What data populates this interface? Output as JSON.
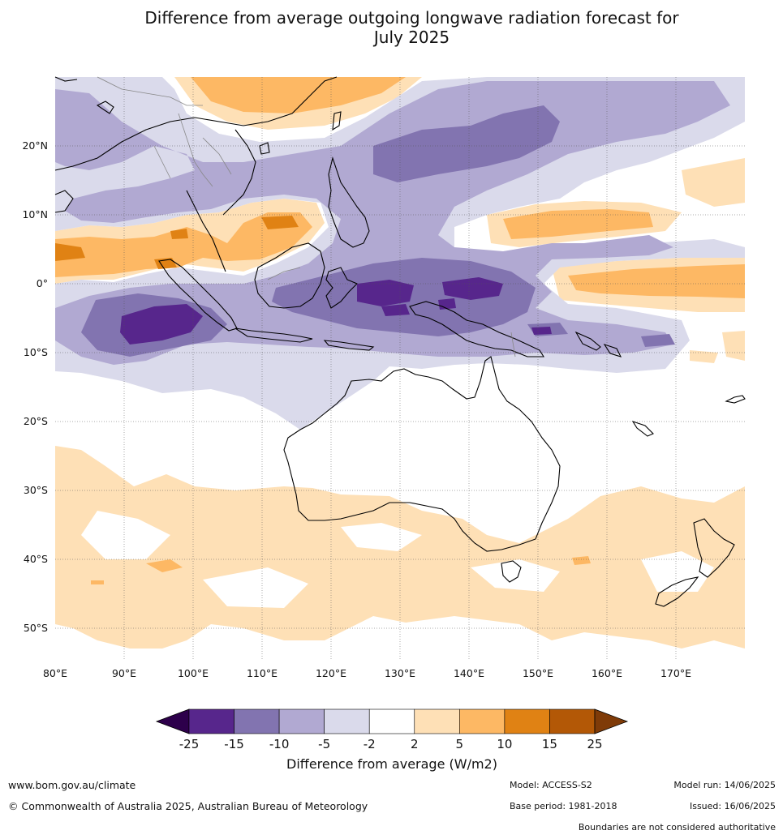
{
  "title": {
    "line1": "Difference from average outgoing longwave radiation forecast for",
    "line2": "July 2025"
  },
  "axes": {
    "lat_labels": [
      "20°N",
      "10°N",
      "0°",
      "10°S",
      "20°S",
      "30°S",
      "40°S",
      "50°S"
    ],
    "lon_labels": [
      "80°E",
      "90°E",
      "100°E",
      "110°E",
      "120°E",
      "130°E",
      "140°E",
      "150°E",
      "160°E",
      "170°E"
    ]
  },
  "colorbar": {
    "ticks": [
      "-25",
      "-15",
      "-10",
      "-5",
      "-2",
      "2",
      "5",
      "10",
      "15",
      "25"
    ],
    "label": "Difference from average (W/m2)",
    "colors": [
      "#57268c",
      "#8274b0",
      "#b1a9d2",
      "#dadaeb",
      "#ffffff",
      "#fee0b6",
      "#fdb864",
      "#e08214",
      "#b35806"
    ],
    "low_extend": "#2d004b",
    "high_extend": "#7f3b08"
  },
  "footer": {
    "website": "www.bom.gov.au/climate",
    "copyright": "© Commonwealth of Australia 2025, Australian Bureau of Meteorology",
    "model": "Model: ACCESS-S2",
    "base_period": "Base period: 1981-2018",
    "model_run": "Model run: 14/06/2025",
    "issued": "Issued: 16/06/2025",
    "disclaimer": "Boundaries are not considered authoritative"
  }
}
